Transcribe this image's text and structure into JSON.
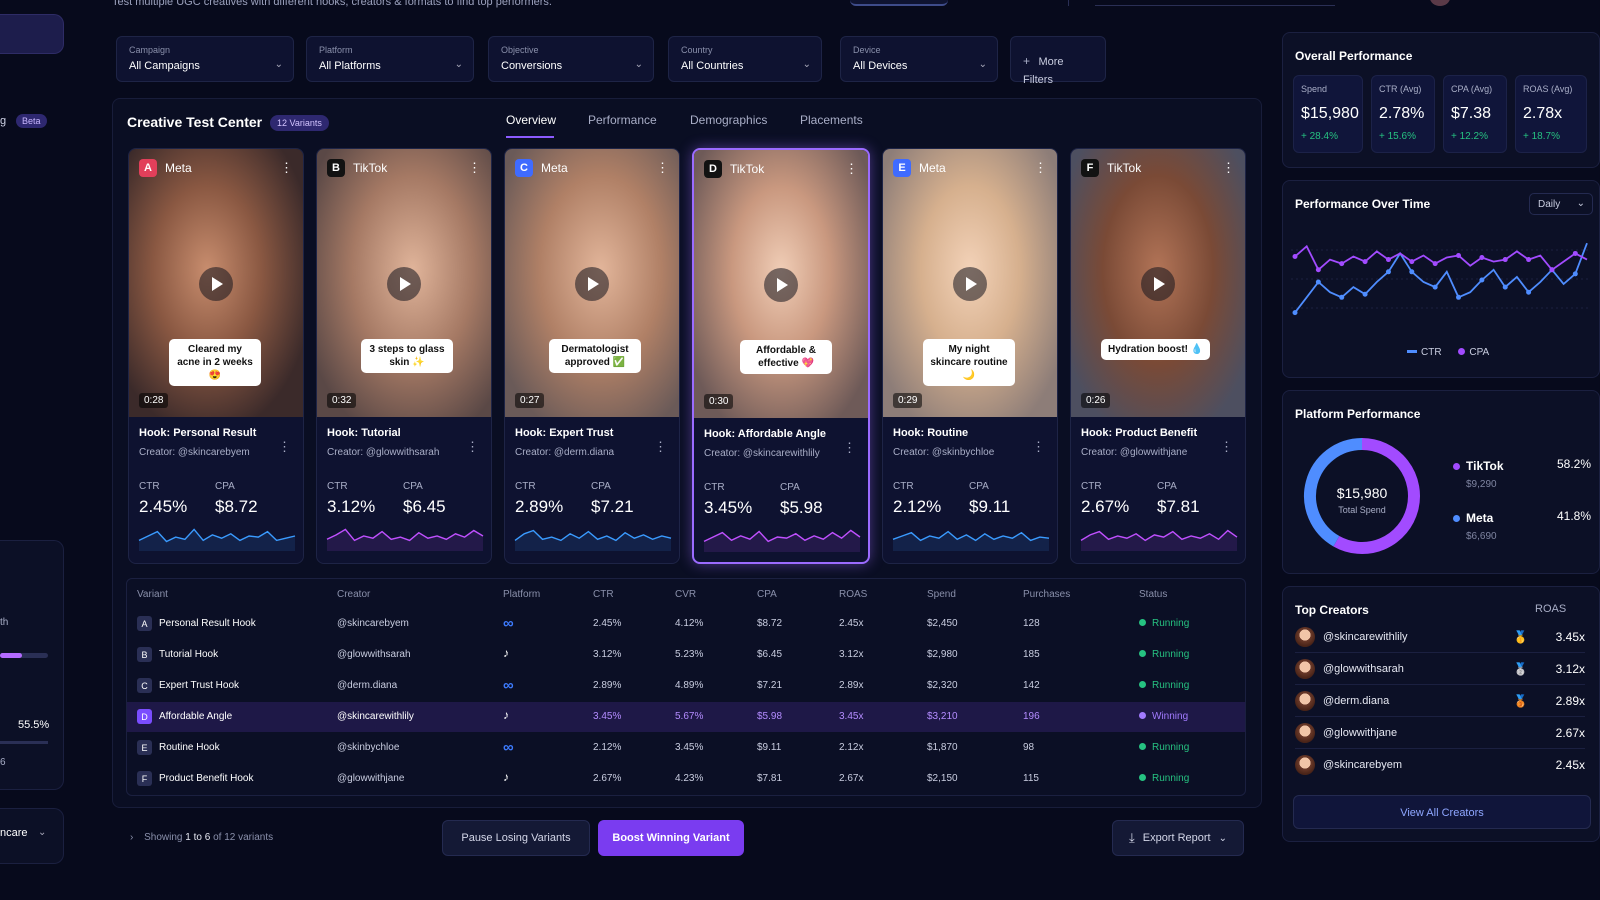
{
  "header": {
    "subtitle": "Test multiple UGC creatives with different hooks, creators & formats to find top performers."
  },
  "left_sidebar": {
    "beta_badge": "Beta",
    "nav_fragment": "g",
    "bar_fragment": "th",
    "percent": "55.5%",
    "percent_fragment": "6",
    "select_value": "ncare"
  },
  "filters": [
    {
      "label": "Campaign",
      "value": "All Campaigns"
    },
    {
      "label": "Platform",
      "value": "All Platforms"
    },
    {
      "label": "Objective",
      "value": "Conversions"
    },
    {
      "label": "Country",
      "value": "All Countries"
    },
    {
      "label": "Device",
      "value": "All Devices"
    }
  ],
  "more_filters": "More Filters",
  "test_center": {
    "title": "Creative Test Center",
    "variants_badge": "12 Variants"
  },
  "tabs": [
    "Overview",
    "Performance",
    "Demographics",
    "Placements"
  ],
  "variants": [
    {
      "letter": "A",
      "platform": "Meta",
      "caption": "Cleared my acne in 2 weeks 😍",
      "duration": "0:28",
      "hook": "Hook: Personal Result",
      "creator": "Creator: @skincarebyem",
      "ctr_label": "CTR",
      "ctr": "2.45%",
      "cpa_label": "CPA",
      "cpa": "$8.72",
      "spark": [
        0.3,
        0.5,
        0.7,
        0.25,
        0.45,
        0.35,
        0.8,
        0.3,
        0.55,
        0.4,
        0.6,
        0.3,
        0.5,
        0.45,
        0.7,
        0.3,
        0.4,
        0.5
      ]
    },
    {
      "letter": "B",
      "platform": "TikTok",
      "caption": "3 steps to glass skin ✨",
      "duration": "0:32",
      "hook": "Hook: Tutorial",
      "creator": "Creator: @glowwithsarah",
      "ctr_label": "CTR",
      "ctr": "3.12%",
      "cpa_label": "CPA",
      "cpa": "$6.45",
      "spark": [
        0.35,
        0.55,
        0.8,
        0.3,
        0.5,
        0.4,
        0.7,
        0.35,
        0.45,
        0.3,
        0.65,
        0.4,
        0.5,
        0.35,
        0.6,
        0.45,
        0.75,
        0.5
      ]
    },
    {
      "letter": "C",
      "platform": "Meta",
      "caption": "Dermatologist approved ✅",
      "duration": "0:27",
      "hook": "Hook: Expert Trust",
      "creator": "Creator: @derm.diana",
      "ctr_label": "CTR",
      "ctr": "2.89%",
      "cpa_label": "CPA",
      "cpa": "$7.21",
      "spark": [
        0.3,
        0.6,
        0.75,
        0.35,
        0.45,
        0.3,
        0.6,
        0.4,
        0.7,
        0.35,
        0.5,
        0.3,
        0.65,
        0.4,
        0.55,
        0.35,
        0.5,
        0.4
      ]
    },
    {
      "letter": "D",
      "platform": "TikTok",
      "caption": "Affordable & effective 💖",
      "duration": "0:30",
      "hook": "Hook: Affordable Angle",
      "creator": "Creator: @skincarewithlily",
      "ctr_label": "CTR",
      "ctr": "3.45%",
      "cpa_label": "CPA",
      "cpa": "$5.98",
      "spark": [
        0.3,
        0.5,
        0.7,
        0.35,
        0.55,
        0.4,
        0.75,
        0.3,
        0.5,
        0.45,
        0.65,
        0.35,
        0.55,
        0.4,
        0.7,
        0.45,
        0.8,
        0.5
      ]
    },
    {
      "letter": "E",
      "platform": "Meta",
      "caption": "My night skincare routine 🌙",
      "duration": "0:29",
      "hook": "Hook: Routine",
      "creator": "Creator: @skinbychloe",
      "ctr_label": "CTR",
      "ctr": "2.12%",
      "cpa_label": "CPA",
      "cpa": "$9.11",
      "spark": [
        0.35,
        0.5,
        0.65,
        0.3,
        0.5,
        0.4,
        0.7,
        0.35,
        0.55,
        0.3,
        0.6,
        0.35,
        0.5,
        0.4,
        0.65,
        0.3,
        0.45,
        0.4
      ]
    },
    {
      "letter": "F",
      "platform": "TikTok",
      "caption": "Hydration boost! 💧",
      "duration": "0:26",
      "hook": "Hook: Product Benefit",
      "creator": "Creator: @glowwithjane",
      "ctr_label": "CTR",
      "ctr": "2.67%",
      "cpa_label": "CPA",
      "cpa": "$7.81",
      "spark": [
        0.3,
        0.55,
        0.7,
        0.35,
        0.5,
        0.4,
        0.6,
        0.3,
        0.55,
        0.45,
        0.7,
        0.35,
        0.5,
        0.4,
        0.6,
        0.35,
        0.75,
        0.45
      ]
    }
  ],
  "table": {
    "headers": [
      "Variant",
      "Creator",
      "Platform",
      "CTR",
      "CVR",
      "CPA",
      "ROAS",
      "Spend",
      "Purchases",
      "Status"
    ],
    "rows": [
      {
        "letter": "A",
        "variant": "Personal Result Hook",
        "creator": "@skincarebyem",
        "platform_icon": "meta-icon",
        "ctr": "2.45%",
        "cvr": "4.12%",
        "cpa": "$8.72",
        "roas": "2.45x",
        "spend": "$2,450",
        "purchases": "128",
        "status": "Running"
      },
      {
        "letter": "B",
        "variant": "Tutorial Hook",
        "creator": "@glowwithsarah",
        "platform_icon": "tiktok-icon",
        "ctr": "3.12%",
        "cvr": "5.23%",
        "cpa": "$6.45",
        "roas": "3.12x",
        "spend": "$2,980",
        "purchases": "185",
        "status": "Running"
      },
      {
        "letter": "C",
        "variant": "Expert Trust Hook",
        "creator": "@derm.diana",
        "platform_icon": "meta-icon",
        "ctr": "2.89%",
        "cvr": "4.89%",
        "cpa": "$7.21",
        "roas": "2.89x",
        "spend": "$2,320",
        "purchases": "142",
        "status": "Running"
      },
      {
        "letter": "D",
        "variant": "Affordable Angle",
        "creator": "@skincarewithlily",
        "platform_icon": "tiktok-icon",
        "ctr": "3.45%",
        "cvr": "5.67%",
        "cpa": "$5.98",
        "roas": "3.45x",
        "spend": "$3,210",
        "purchases": "196",
        "status": "Winning"
      },
      {
        "letter": "E",
        "variant": "Routine Hook",
        "creator": "@skinbychloe",
        "platform_icon": "meta-icon",
        "ctr": "2.12%",
        "cvr": "3.45%",
        "cpa": "$9.11",
        "roas": "2.12x",
        "spend": "$1,870",
        "purchases": "98",
        "status": "Running"
      },
      {
        "letter": "F",
        "variant": "Product Benefit Hook",
        "creator": "@glowwithjane",
        "platform_icon": "tiktok-icon",
        "ctr": "2.67%",
        "cvr": "4.23%",
        "cpa": "$7.81",
        "roas": "2.67x",
        "spend": "$2,150",
        "purchases": "115",
        "status": "Running"
      }
    ]
  },
  "footer": {
    "showing_prefix": "Showing",
    "showing_range": "1 to 6",
    "showing_suffix": "of 12 variants",
    "pause_btn": "Pause Losing Variants",
    "boost_btn": "Boost Winning Variant",
    "export_btn": "Export Report"
  },
  "overall": {
    "title": "Overall Performance",
    "kpis": [
      {
        "label": "Spend",
        "value": "$15,980",
        "change": "+ 28.4%"
      },
      {
        "label": "CTR (Avg)",
        "value": "2.78%",
        "change": "+ 15.6%"
      },
      {
        "label": "CPA (Avg)",
        "value": "$7.38",
        "change": "+ 12.2%"
      },
      {
        "label": "ROAS (Avg)",
        "value": "2.78x",
        "change": "+ 18.7%"
      }
    ]
  },
  "perf_time": {
    "title": "Performance Over Time",
    "range": "Daily"
  },
  "chart_data": {
    "type": "line",
    "title": "Performance Over Time",
    "series": [
      {
        "name": "CTR",
        "color": "#4f8dff",
        "values": [
          0.2,
          0.35,
          0.5,
          0.4,
          0.35,
          0.45,
          0.38,
          0.5,
          0.6,
          0.78,
          0.6,
          0.5,
          0.45,
          0.6,
          0.35,
          0.4,
          0.52,
          0.62,
          0.45,
          0.55,
          0.4,
          0.5,
          0.62,
          0.48,
          0.58,
          0.88
        ]
      },
      {
        "name": "CPA",
        "color": "#a24bff",
        "values": [
          0.75,
          0.85,
          0.62,
          0.72,
          0.68,
          0.75,
          0.7,
          0.8,
          0.72,
          0.78,
          0.7,
          0.76,
          0.68,
          0.74,
          0.76,
          0.66,
          0.74,
          0.7,
          0.72,
          0.8,
          0.72,
          0.76,
          0.62,
          0.7,
          0.78,
          0.72
        ]
      }
    ]
  },
  "platform_perf": {
    "title": "Platform Performance",
    "total": "$15,980",
    "total_label": "Total Spend",
    "items": [
      {
        "name": "TikTok",
        "spend": "$9,290",
        "share": "58.2%",
        "value": 58.2,
        "color": "#a24bff"
      },
      {
        "name": "Meta",
        "spend": "$6,690",
        "share": "41.8%",
        "value": 41.8,
        "color": "#4f8dff"
      }
    ]
  },
  "top_creators": {
    "title": "Top Creators",
    "col": "ROAS",
    "items": [
      {
        "name": "@skincarewithlily",
        "roas": "3.45x",
        "medal": "🥇"
      },
      {
        "name": "@glowwithsarah",
        "roas": "3.12x",
        "medal": "🥈"
      },
      {
        "name": "@derm.diana",
        "roas": "2.89x",
        "medal": "🥉"
      },
      {
        "name": "@glowwithjane",
        "roas": "2.67x",
        "medal": ""
      },
      {
        "name": "@skincarebyem",
        "roas": "2.45x",
        "medal": ""
      }
    ],
    "view_all": "View All Creators"
  }
}
